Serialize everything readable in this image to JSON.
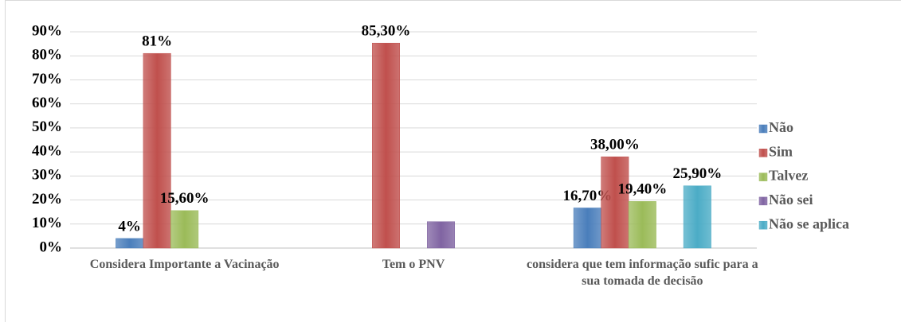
{
  "chart_data": {
    "type": "bar",
    "categories": [
      "Considera Importante a Vacinação",
      "Tem o PNV",
      "considera que tem informação sufic para a sua tomada de decisão"
    ],
    "series": [
      {
        "name": "Não",
        "color": "#4a7ebb",
        "values": [
          4,
          null,
          16.7
        ],
        "value_labels": [
          "4%",
          null,
          "16,70%"
        ]
      },
      {
        "name": "Sim",
        "color": "#c0504d",
        "values": [
          81,
          85.3,
          38
        ],
        "value_labels": [
          "81%",
          "85,30%",
          "38,00%"
        ]
      },
      {
        "name": "Talvez",
        "color": "#9bbb59",
        "values": [
          15.6,
          null,
          19.4
        ],
        "value_labels": [
          "15,60%",
          null,
          "19,40%"
        ]
      },
      {
        "name": "Não sei",
        "color": "#8064a2",
        "values": [
          null,
          11,
          null
        ],
        "value_labels": [
          null,
          null,
          null
        ]
      },
      {
        "name": "Não se aplica",
        "color": "#4bacc6",
        "values": [
          null,
          null,
          25.9
        ],
        "value_labels": [
          null,
          null,
          "25,90%"
        ]
      }
    ],
    "ylim": [
      0,
      90
    ],
    "yticks": [
      {
        "value": 0,
        "label": "0%"
      },
      {
        "value": 10,
        "label": "10%"
      },
      {
        "value": 20,
        "label": "20%"
      },
      {
        "value": 30,
        "label": "30%"
      },
      {
        "value": 40,
        "label": "40%"
      },
      {
        "value": 50,
        "label": "50%"
      },
      {
        "value": 60,
        "label": "60%"
      },
      {
        "value": 70,
        "label": "70%"
      },
      {
        "value": 80,
        "label": "80%"
      },
      {
        "value": 90,
        "label": "90%"
      }
    ],
    "grid": true,
    "legend": "right"
  }
}
